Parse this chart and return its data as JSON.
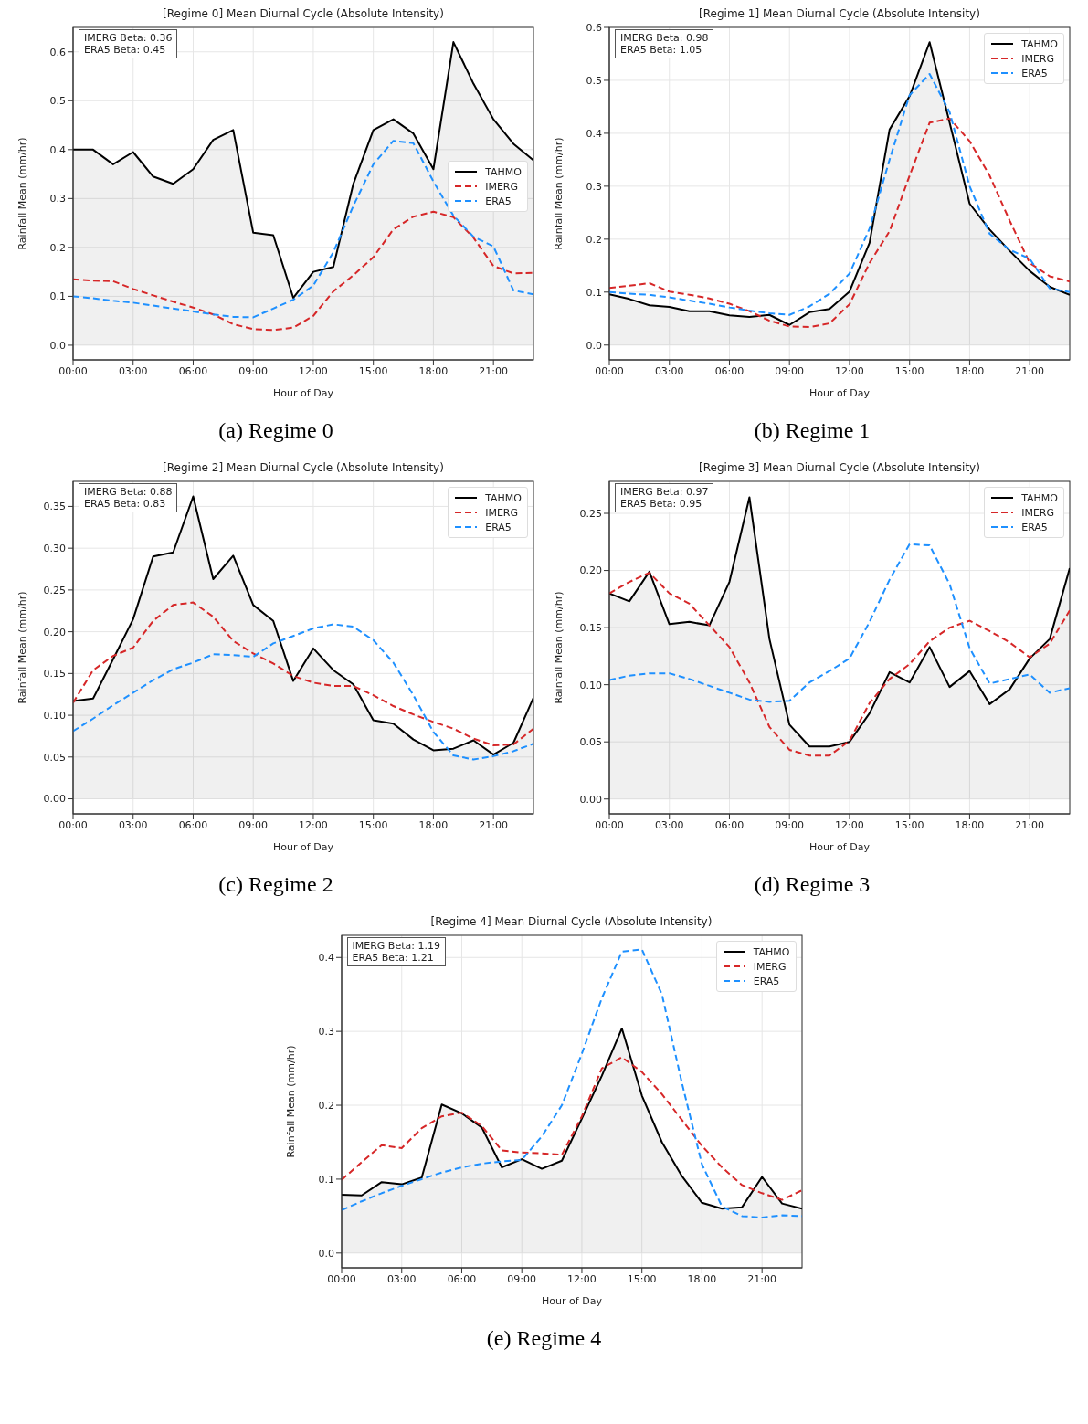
{
  "chart_data": [
    {
      "type": "line",
      "title": "[Regime 0] Mean Diurnal Cycle (Absolute Intensity)",
      "xlabel": "Hour of Day",
      "ylabel": "Rainfall Mean (mm/hr)",
      "annotations": [
        "IMERG Beta: 0.36",
        "ERA5 Beta: 0.45",
        "(a) Regime 0"
      ],
      "x": [
        0,
        1,
        2,
        3,
        4,
        5,
        6,
        7,
        8,
        9,
        10,
        11,
        12,
        13,
        14,
        15,
        16,
        17,
        18,
        19,
        20,
        21,
        22,
        23
      ],
      "xlim": [
        0,
        23
      ],
      "xticks": [
        {
          "value": 0,
          "label": "00:00"
        },
        {
          "value": 3,
          "label": "03:00"
        },
        {
          "value": 6,
          "label": "06:00"
        },
        {
          "value": 9,
          "label": "09:00"
        },
        {
          "value": 12,
          "label": "12:00"
        },
        {
          "value": 15,
          "label": "15:00"
        },
        {
          "value": 18,
          "label": "18:00"
        },
        {
          "value": 21,
          "label": "21:00"
        }
      ],
      "ylim": [
        -0.03,
        0.65
      ],
      "yticks": [
        {
          "value": 0,
          "label": "0.0"
        },
        0.1,
        0.2,
        0.3,
        0.4,
        0.5,
        0.6
      ],
      "grid": true,
      "legend": "right",
      "series": [
        {
          "name": "TAHMO",
          "type": "area",
          "color": "#000000",
          "line_style": "solid",
          "values": [
            0.4,
            0.4,
            0.37,
            0.395,
            0.345,
            0.33,
            0.36,
            0.42,
            0.44,
            0.23,
            0.225,
            0.097,
            0.15,
            0.16,
            0.33,
            0.44,
            0.462,
            0.433,
            0.36,
            0.62,
            0.535,
            0.462,
            0.412,
            0.378
          ]
        },
        {
          "name": "IMERG",
          "type": "line",
          "color": "#d62728",
          "line_style": "dashed",
          "values": [
            0.135,
            0.132,
            0.131,
            0.115,
            0.102,
            0.089,
            0.077,
            0.063,
            0.043,
            0.033,
            0.031,
            0.036,
            0.06,
            0.11,
            0.143,
            0.18,
            0.237,
            0.263,
            0.273,
            0.262,
            0.22,
            0.162,
            0.147,
            0.148
          ]
        },
        {
          "name": "ERA5",
          "type": "line",
          "color": "#1e90ff",
          "line_style": "dashed",
          "values": [
            0.1,
            0.096,
            0.091,
            0.087,
            0.081,
            0.075,
            0.069,
            0.063,
            0.058,
            0.057,
            0.075,
            0.093,
            0.122,
            0.19,
            0.285,
            0.37,
            0.418,
            0.413,
            0.335,
            0.265,
            0.222,
            0.202,
            0.112,
            0.104
          ]
        }
      ]
    },
    {
      "type": "line",
      "title": "[Regime 1] Mean Diurnal Cycle (Absolute Intensity)",
      "xlabel": "Hour of Day",
      "ylabel": "Rainfall Mean (mm/hr)",
      "annotations": [
        "IMERG Beta: 0.98",
        "ERA5 Beta: 1.05",
        "(b) Regime 1"
      ],
      "x": [
        0,
        1,
        2,
        3,
        4,
        5,
        6,
        7,
        8,
        9,
        10,
        11,
        12,
        13,
        14,
        15,
        16,
        17,
        18,
        19,
        20,
        21,
        22,
        23
      ],
      "xlim": [
        0,
        23
      ],
      "xticks": [
        {
          "value": 0,
          "label": "00:00"
        },
        {
          "value": 3,
          "label": "03:00"
        },
        {
          "value": 6,
          "label": "06:00"
        },
        {
          "value": 9,
          "label": "09:00"
        },
        {
          "value": 12,
          "label": "12:00"
        },
        {
          "value": 15,
          "label": "15:00"
        },
        {
          "value": 18,
          "label": "18:00"
        },
        {
          "value": 21,
          "label": "21:00"
        }
      ],
      "ylim": [
        -0.028,
        0.6
      ],
      "yticks": [
        {
          "value": 0,
          "label": "0.0"
        },
        0.1,
        0.2,
        0.3,
        0.4,
        0.5,
        0.6
      ],
      "grid": true,
      "legend": "top right",
      "series": [
        {
          "name": "TAHMO",
          "type": "area",
          "color": "#000000",
          "line_style": "solid",
          "values": [
            0.096,
            0.087,
            0.075,
            0.072,
            0.064,
            0.064,
            0.056,
            0.053,
            0.057,
            0.038,
            0.062,
            0.068,
            0.101,
            0.193,
            0.407,
            0.47,
            0.572,
            0.42,
            0.267,
            0.218,
            0.178,
            0.14,
            0.11,
            0.095
          ]
        },
        {
          "name": "IMERG",
          "type": "line",
          "color": "#d62728",
          "line_style": "dashed",
          "values": [
            0.108,
            0.112,
            0.117,
            0.101,
            0.095,
            0.088,
            0.078,
            0.064,
            0.046,
            0.035,
            0.034,
            0.041,
            0.077,
            0.155,
            0.215,
            0.32,
            0.42,
            0.428,
            0.385,
            0.32,
            0.235,
            0.155,
            0.13,
            0.12
          ]
        },
        {
          "name": "ERA5",
          "type": "line",
          "color": "#1e90ff",
          "line_style": "dashed",
          "values": [
            0.1,
            0.097,
            0.095,
            0.09,
            0.084,
            0.078,
            0.071,
            0.065,
            0.06,
            0.057,
            0.073,
            0.097,
            0.135,
            0.22,
            0.35,
            0.472,
            0.512,
            0.44,
            0.3,
            0.21,
            0.18,
            0.163,
            0.107,
            0.1
          ]
        }
      ]
    },
    {
      "type": "line",
      "title": "[Regime 2] Mean Diurnal Cycle (Absolute Intensity)",
      "xlabel": "Hour of Day",
      "ylabel": "Rainfall Mean (mm/hr)",
      "annotations": [
        "IMERG Beta: 0.88",
        "ERA5 Beta: 0.83",
        "(c) Regime 2"
      ],
      "x": [
        0,
        1,
        2,
        3,
        4,
        5,
        6,
        7,
        8,
        9,
        10,
        11,
        12,
        13,
        14,
        15,
        16,
        17,
        18,
        19,
        20,
        21,
        22,
        23
      ],
      "xlim": [
        0,
        23
      ],
      "xticks": [
        {
          "value": 0,
          "label": "00:00"
        },
        {
          "value": 3,
          "label": "03:00"
        },
        {
          "value": 6,
          "label": "06:00"
        },
        {
          "value": 9,
          "label": "09:00"
        },
        {
          "value": 12,
          "label": "12:00"
        },
        {
          "value": 15,
          "label": "15:00"
        },
        {
          "value": 18,
          "label": "18:00"
        },
        {
          "value": 21,
          "label": "21:00"
        }
      ],
      "ylim": [
        -0.018,
        0.38
      ],
      "yticks": [
        {
          "value": 0,
          "label": "0.00"
        },
        0.05,
        {
          "value": 0.1,
          "label": "0.10"
        },
        0.15,
        {
          "value": 0.2,
          "label": "0.20"
        },
        0.25,
        {
          "value": 0.3,
          "label": "0.30"
        },
        0.35
      ],
      "grid": true,
      "legend": "top right",
      "series": [
        {
          "name": "TAHMO",
          "type": "area",
          "color": "#000000",
          "line_style": "solid",
          "values": [
            0.117,
            0.12,
            0.167,
            0.215,
            0.29,
            0.295,
            0.362,
            0.263,
            0.291,
            0.232,
            0.213,
            0.141,
            0.18,
            0.154,
            0.137,
            0.094,
            0.09,
            0.071,
            0.058,
            0.06,
            0.07,
            0.053,
            0.067,
            0.121
          ]
        },
        {
          "name": "IMERG",
          "type": "line",
          "color": "#d62728",
          "line_style": "dashed",
          "values": [
            0.115,
            0.154,
            0.171,
            0.181,
            0.213,
            0.232,
            0.235,
            0.218,
            0.189,
            0.174,
            0.162,
            0.147,
            0.139,
            0.135,
            0.135,
            0.124,
            0.111,
            0.101,
            0.092,
            0.084,
            0.072,
            0.064,
            0.065,
            0.084
          ]
        },
        {
          "name": "ERA5",
          "type": "line",
          "color": "#1e90ff",
          "line_style": "dashed",
          "values": [
            0.081,
            0.096,
            0.112,
            0.127,
            0.142,
            0.155,
            0.163,
            0.173,
            0.172,
            0.17,
            0.186,
            0.195,
            0.204,
            0.209,
            0.206,
            0.19,
            0.163,
            0.124,
            0.08,
            0.052,
            0.047,
            0.051,
            0.057,
            0.066
          ]
        }
      ]
    },
    {
      "type": "line",
      "title": "[Regime 3] Mean Diurnal Cycle (Absolute Intensity)",
      "xlabel": "Hour of Day",
      "ylabel": "Rainfall Mean (mm/hr)",
      "annotations": [
        "IMERG Beta: 0.97",
        "ERA5 Beta: 0.95",
        "(d) Regime 3"
      ],
      "x": [
        0,
        1,
        2,
        3,
        4,
        5,
        6,
        7,
        8,
        9,
        10,
        11,
        12,
        13,
        14,
        15,
        16,
        17,
        18,
        19,
        20,
        21,
        22,
        23
      ],
      "xlim": [
        0,
        23
      ],
      "xticks": [
        {
          "value": 0,
          "label": "00:00"
        },
        {
          "value": 3,
          "label": "03:00"
        },
        {
          "value": 6,
          "label": "06:00"
        },
        {
          "value": 9,
          "label": "09:00"
        },
        {
          "value": 12,
          "label": "12:00"
        },
        {
          "value": 15,
          "label": "15:00"
        },
        {
          "value": 18,
          "label": "18:00"
        },
        {
          "value": 21,
          "label": "21:00"
        }
      ],
      "ylim": [
        -0.013,
        0.278
      ],
      "yticks": [
        {
          "value": 0,
          "label": "0.00"
        },
        0.05,
        {
          "value": 0.1,
          "label": "0.10"
        },
        0.15,
        {
          "value": 0.2,
          "label": "0.20"
        },
        0.25
      ],
      "grid": true,
      "legend": "top right",
      "series": [
        {
          "name": "TAHMO",
          "type": "area",
          "color": "#000000",
          "line_style": "solid",
          "values": [
            0.18,
            0.173,
            0.199,
            0.153,
            0.155,
            0.152,
            0.19,
            0.264,
            0.14,
            0.065,
            0.046,
            0.046,
            0.05,
            0.075,
            0.111,
            0.102,
            0.133,
            0.098,
            0.112,
            0.083,
            0.096,
            0.123,
            0.14,
            0.202
          ]
        },
        {
          "name": "IMERG",
          "type": "line",
          "color": "#d62728",
          "line_style": "dashed",
          "values": [
            0.18,
            0.19,
            0.198,
            0.18,
            0.171,
            0.152,
            0.133,
            0.102,
            0.063,
            0.043,
            0.038,
            0.038,
            0.051,
            0.084,
            0.105,
            0.118,
            0.138,
            0.15,
            0.156,
            0.147,
            0.137,
            0.124,
            0.136,
            0.165
          ]
        },
        {
          "name": "ERA5",
          "type": "line",
          "color": "#1e90ff",
          "line_style": "dashed",
          "values": [
            0.104,
            0.108,
            0.11,
            0.11,
            0.105,
            0.099,
            0.093,
            0.087,
            0.085,
            0.086,
            0.102,
            0.112,
            0.123,
            0.155,
            0.192,
            0.223,
            0.222,
            0.188,
            0.132,
            0.101,
            0.105,
            0.109,
            0.093,
            0.097
          ]
        }
      ]
    },
    {
      "type": "line",
      "title": "[Regime 4] Mean Diurnal Cycle (Absolute Intensity)",
      "xlabel": "Hour of Day",
      "ylabel": "Rainfall Mean (mm/hr)",
      "annotations": [
        "IMERG Beta: 1.19",
        "ERA5 Beta: 1.21",
        "(e) Regime 4"
      ],
      "x": [
        0,
        1,
        2,
        3,
        4,
        5,
        6,
        7,
        8,
        9,
        10,
        11,
        12,
        13,
        14,
        15,
        16,
        17,
        18,
        19,
        20,
        21,
        22,
        23
      ],
      "xlim": [
        0,
        23
      ],
      "xticks": [
        {
          "value": 0,
          "label": "00:00"
        },
        {
          "value": 3,
          "label": "03:00"
        },
        {
          "value": 6,
          "label": "06:00"
        },
        {
          "value": 9,
          "label": "09:00"
        },
        {
          "value": 12,
          "label": "12:00"
        },
        {
          "value": 15,
          "label": "15:00"
        },
        {
          "value": 18,
          "label": "18:00"
        },
        {
          "value": 21,
          "label": "21:00"
        }
      ],
      "ylim": [
        -0.02,
        0.43
      ],
      "yticks": [
        {
          "value": 0,
          "label": "0.0"
        },
        0.1,
        0.2,
        0.3,
        0.4
      ],
      "grid": true,
      "legend": "top right",
      "series": [
        {
          "name": "TAHMO",
          "type": "area",
          "color": "#000000",
          "line_style": "solid",
          "values": [
            0.079,
            0.078,
            0.096,
            0.093,
            0.102,
            0.201,
            0.189,
            0.17,
            0.116,
            0.127,
            0.114,
            0.125,
            0.182,
            0.24,
            0.304,
            0.213,
            0.15,
            0.104,
            0.068,
            0.06,
            0.062,
            0.103,
            0.067,
            0.06
          ]
        },
        {
          "name": "IMERG",
          "type": "line",
          "color": "#d62728",
          "line_style": "dashed",
          "values": [
            0.099,
            0.123,
            0.146,
            0.142,
            0.169,
            0.185,
            0.19,
            0.172,
            0.139,
            0.136,
            0.135,
            0.133,
            0.185,
            0.25,
            0.265,
            0.245,
            0.215,
            0.18,
            0.145,
            0.116,
            0.092,
            0.081,
            0.072,
            0.085
          ]
        },
        {
          "name": "ERA5",
          "type": "line",
          "color": "#1e90ff",
          "line_style": "dashed",
          "values": [
            0.058,
            0.07,
            0.081,
            0.091,
            0.1,
            0.109,
            0.116,
            0.121,
            0.124,
            0.126,
            0.158,
            0.2,
            0.27,
            0.345,
            0.408,
            0.411,
            0.35,
            0.23,
            0.12,
            0.063,
            0.05,
            0.048,
            0.051,
            0.05
          ]
        }
      ]
    }
  ]
}
